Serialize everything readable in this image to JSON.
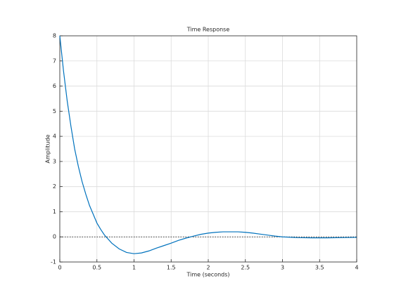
{
  "chart_data": {
    "type": "line",
    "title": "Time Response",
    "x_label": "Time (seconds)",
    "y_label": "Amplitude",
    "x": [
      0,
      0.05,
      0.1,
      0.15,
      0.2,
      0.25,
      0.3,
      0.35,
      0.4,
      0.45,
      0.5,
      0.55,
      0.6,
      0.7,
      0.8,
      0.9,
      1.0,
      1.1,
      1.2,
      1.3,
      1.4,
      1.5,
      1.6,
      1.7,
      1.8,
      1.9,
      2.0,
      2.1,
      2.2,
      2.3,
      2.4,
      2.5,
      2.6,
      2.7,
      2.8,
      2.9,
      3.0,
      3.2,
      3.4,
      3.6,
      3.8,
      4.0
    ],
    "series": [
      {
        "color": "#0072bd",
        "values": [
          8,
          6.6,
          5.4,
          4.4,
          3.5,
          2.8,
          2.2,
          1.7,
          1.25,
          0.9,
          0.55,
          0.3,
          0.08,
          -0.25,
          -0.48,
          -0.62,
          -0.67,
          -0.64,
          -0.56,
          -0.45,
          -0.35,
          -0.25,
          -0.14,
          -0.05,
          0.03,
          0.1,
          0.15,
          0.18,
          0.2,
          0.2,
          0.2,
          0.18,
          0.15,
          0.11,
          0.07,
          0.03,
          0,
          -0.03,
          -0.04,
          -0.04,
          -0.03,
          -0.02
        ]
      }
    ],
    "reference_line": 0,
    "xlim": [
      0,
      4
    ],
    "ylim": [
      -1,
      8
    ],
    "xticks": [
      0,
      0.5,
      1,
      1.5,
      2,
      2.5,
      3,
      3.5,
      4
    ],
    "yticks": [
      -1,
      0,
      1,
      2,
      3,
      4,
      5,
      6,
      7,
      8
    ],
    "grid": true
  }
}
